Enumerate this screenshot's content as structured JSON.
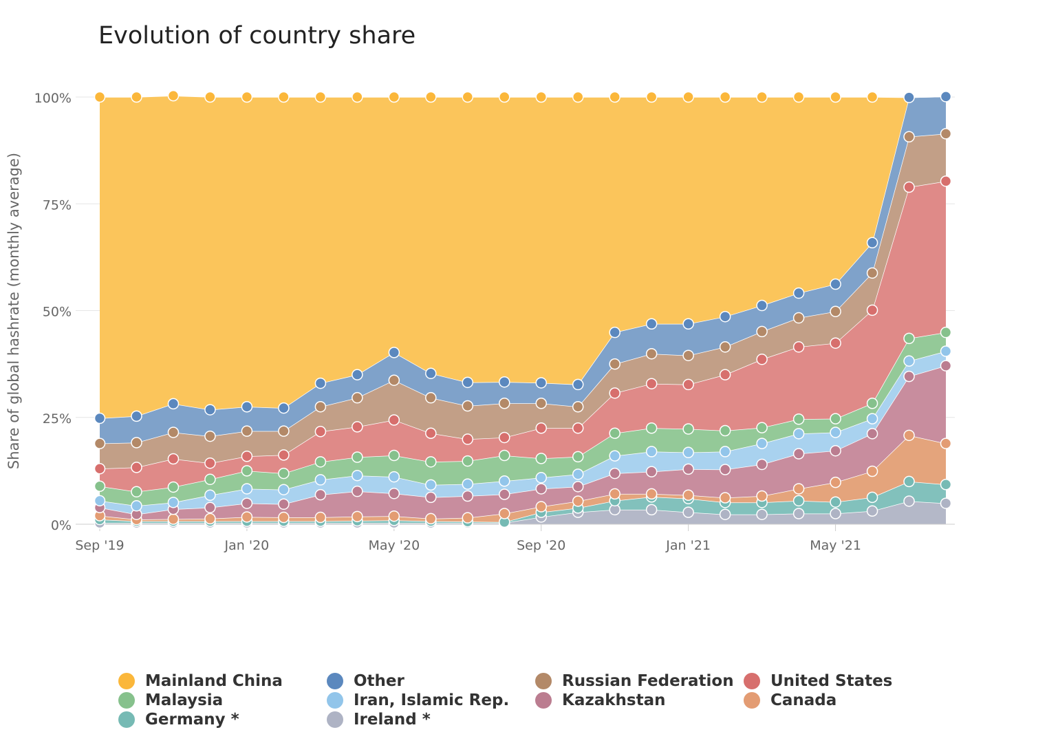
{
  "chart_data": {
    "type": "area",
    "stacked": true,
    "percent": true,
    "title": "Evolution of country share",
    "ylabel": "Share of global hashrate (monthly average)",
    "ylim": [
      0,
      100
    ],
    "yticks": [
      "0%",
      "25%",
      "50%",
      "75%",
      "100%"
    ],
    "x": [
      "2019-09",
      "2019-10",
      "2019-11",
      "2019-12",
      "2020-01",
      "2020-02",
      "2020-03",
      "2020-04",
      "2020-05",
      "2020-06",
      "2020-07",
      "2020-08",
      "2020-09",
      "2020-10",
      "2020-11",
      "2020-12",
      "2021-01",
      "2021-02",
      "2021-03",
      "2021-04",
      "2021-05",
      "2021-06",
      "2021-07",
      "2021-08"
    ],
    "xticks": [
      {
        "date": "2019-09",
        "label": "Sep '19"
      },
      {
        "date": "2020-01",
        "label": "Jan '20"
      },
      {
        "date": "2020-05",
        "label": "May '20"
      },
      {
        "date": "2020-09",
        "label": "Sep '20"
      },
      {
        "date": "2021-01",
        "label": "Jan '21"
      },
      {
        "date": "2021-05",
        "label": "May '21"
      }
    ],
    "legend_position": "bottom",
    "series": [
      {
        "name": "Ireland *",
        "color": "#b4b8c8",
        "values": [
          0.3,
          0.3,
          0.3,
          0.3,
          0.3,
          0.3,
          0.3,
          0.3,
          0.3,
          0.3,
          0.3,
          0.3,
          1.7,
          2.8,
          3.4,
          3.4,
          2.8,
          2.3,
          2.3,
          2.5,
          2.5,
          3.1,
          5.4,
          4.9
        ]
      },
      {
        "name": "Germany *",
        "color": "#82c1bc",
        "values": [
          0.8,
          0.4,
          0.4,
          0.4,
          0.4,
          0.4,
          0.4,
          0.5,
          0.6,
          0.4,
          0.3,
          0.2,
          1.1,
          1.0,
          2.1,
          3.0,
          3.2,
          2.8,
          2.8,
          3.0,
          2.7,
          3.2,
          4.6,
          4.4
        ]
      },
      {
        "name": "Canada",
        "color": "#e4a47c",
        "values": [
          0.9,
          0.4,
          0.5,
          0.6,
          1.0,
          0.9,
          0.9,
          1.0,
          1.0,
          0.6,
          0.9,
          2.0,
          1.3,
          1.6,
          1.6,
          0.7,
          0.8,
          1.1,
          1.5,
          2.8,
          4.6,
          6.1,
          10.8,
          9.6
        ]
      },
      {
        "name": "Kazakhstan",
        "color": "#c88d9e",
        "values": [
          1.9,
          1.2,
          2.3,
          2.6,
          3.2,
          3.1,
          5.3,
          5.9,
          5.3,
          5.0,
          5.1,
          4.5,
          4.2,
          3.4,
          4.8,
          5.2,
          6.1,
          6.6,
          7.4,
          8.2,
          7.4,
          8.8,
          13.8,
          18.2
        ]
      },
      {
        "name": "Iran, Islamic Rep.",
        "color": "#a9d2ef",
        "values": [
          1.6,
          2.0,
          1.6,
          2.9,
          3.4,
          3.4,
          3.5,
          3.7,
          3.9,
          2.9,
          2.8,
          3.1,
          2.6,
          2.9,
          4.1,
          4.7,
          3.9,
          4.2,
          4.9,
          4.7,
          4.3,
          3.5,
          3.6,
          3.4
        ]
      },
      {
        "name": "Malaysia",
        "color": "#94c998",
        "values": [
          3.4,
          3.3,
          3.6,
          3.7,
          4.2,
          3.8,
          4.2,
          4.3,
          5.0,
          5.4,
          5.4,
          6.0,
          4.5,
          4.1,
          5.3,
          5.5,
          5.5,
          4.9,
          3.7,
          3.4,
          3.2,
          3.6,
          5.3,
          4.4
        ]
      },
      {
        "name": "United States",
        "color": "#df8a88",
        "values": [
          4.1,
          5.7,
          6.6,
          3.8,
          3.4,
          4.3,
          7.1,
          7.1,
          8.3,
          6.7,
          5.1,
          4.2,
          7.1,
          6.7,
          9.4,
          10.4,
          10.4,
          13.1,
          16.0,
          16.9,
          17.7,
          21.8,
          35.4,
          35.4
        ]
      },
      {
        "name": "Russian Federation",
        "color": "#c29f87",
        "values": [
          5.9,
          5.8,
          6.2,
          6.3,
          5.9,
          5.6,
          5.8,
          6.8,
          9.3,
          8.3,
          7.8,
          8.0,
          5.8,
          5.0,
          6.8,
          7.0,
          6.8,
          6.5,
          6.5,
          6.8,
          7.4,
          8.7,
          11.8,
          11.1
        ]
      },
      {
        "name": "Other",
        "color": "#7fa2ca",
        "values": [
          5.9,
          6.2,
          6.7,
          6.2,
          5.7,
          5.4,
          5.5,
          5.4,
          6.5,
          5.7,
          5.5,
          5.0,
          4.8,
          5.2,
          7.4,
          7.0,
          7.4,
          7.1,
          6.1,
          5.8,
          6.4,
          7.1,
          9.2,
          8.7
        ]
      },
      {
        "name": "Mainland China",
        "color": "#fbc55b",
        "values": [
          75.2,
          74.7,
          72.1,
          73.2,
          72.5,
          72.8,
          67.0,
          65.0,
          59.8,
          64.7,
          66.8,
          66.7,
          66.9,
          67.3,
          55.1,
          53.1,
          53.1,
          51.4,
          48.8,
          45.9,
          43.8,
          34.1,
          0.0,
          0.0
        ]
      }
    ]
  },
  "legend": [
    {
      "name": "Mainland China",
      "color": "#fbb73a"
    },
    {
      "name": "Other",
      "color": "#5b88be"
    },
    {
      "name": "Russian Federation",
      "color": "#b38968"
    },
    {
      "name": "United States",
      "color": "#d76f6d"
    },
    {
      "name": "Malaysia",
      "color": "#86c18c"
    },
    {
      "name": "Iran, Islamic Rep.",
      "color": "#92c5ea"
    },
    {
      "name": "Kazakhstan",
      "color": "#bb7d90"
    },
    {
      "name": "Canada",
      "color": "#e39c73"
    },
    {
      "name": "Germany *",
      "color": "#76bab4"
    },
    {
      "name": "Ireland *",
      "color": "#aeb3c4"
    }
  ]
}
